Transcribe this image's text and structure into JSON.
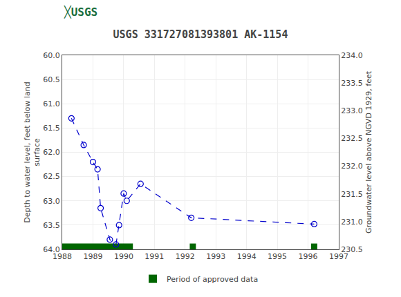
{
  "chart_data": {
    "type": "line",
    "title": "USGS 331727081393801 AK-1154",
    "annotations": [
      {
        "text": "╳USGS"
      }
    ],
    "ylabel": "Depth to water level, feet below land\nsurface",
    "y2label": "Groundwater level above NGVD 1929, feet",
    "xlim": [
      1988,
      1997
    ],
    "xticks": [
      1988,
      1989,
      1990,
      1991,
      1992,
      1993,
      1994,
      1995,
      1996,
      1997
    ],
    "ylim": [
      64.0,
      60.0
    ],
    "yticks": [
      {
        "value": 60.0,
        "label": "60.0"
      },
      60.5,
      {
        "value": 61.0,
        "label": "61.0"
      },
      61.5,
      {
        "value": 62.0,
        "label": "62.0"
      },
      62.5,
      {
        "value": 63.0,
        "label": "63.0"
      },
      63.5,
      {
        "value": 64.0,
        "label": "64.0"
      }
    ],
    "y2lim": [
      230.5,
      234.0
    ],
    "y2ticks": [
      230.5,
      {
        "value": 231.0,
        "label": "231.0"
      },
      231.5,
      {
        "value": 232.0,
        "label": "232.0"
      },
      232.5,
      {
        "value": 233.0,
        "label": "233.0"
      },
      233.5,
      {
        "value": 234.0,
        "label": "234.0"
      }
    ],
    "grid": true,
    "legend": "bottom",
    "series": [
      {
        "type": "line",
        "color": "#0000CC",
        "marker": "circle-open",
        "line_style": "dash",
        "x": [
          1988.3,
          1988.7,
          1989.0,
          1989.15,
          1989.25,
          1989.55,
          1989.75,
          1989.85,
          1990.0,
          1990.1,
          1990.55,
          1992.2,
          1996.2
        ],
        "values": [
          61.3,
          61.85,
          62.2,
          62.35,
          63.15,
          63.8,
          63.9,
          63.5,
          62.85,
          63.0,
          62.65,
          63.35,
          63.48
        ]
      },
      {
        "type": "bar",
        "orientation": "horizontal",
        "name": "Period of approved data",
        "color": "#006600",
        "bars": [
          {
            "x_start": 1988.0,
            "x_end": 1990.3,
            "y": 64.0,
            "height": 0.12
          },
          {
            "x_start": 1992.15,
            "x_end": 1992.35,
            "y": 64.0,
            "height": 0.12
          },
          {
            "x_start": 1996.1,
            "x_end": 1996.3,
            "y": 64.0,
            "height": 0.12
          }
        ]
      }
    ]
  }
}
